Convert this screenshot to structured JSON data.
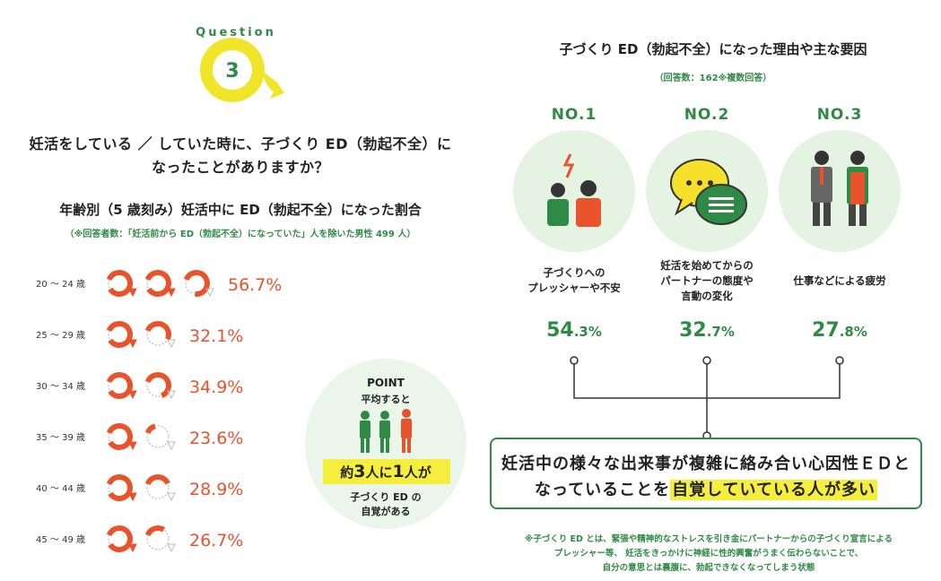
{
  "question": {
    "badge_word": "Question",
    "badge_number": "3",
    "title_line1": "妊活をしている ／ していた時に、子づくり ED（勃起不全）に",
    "title_line2": "なったことがありますか？"
  },
  "left_chart": {
    "title": "年齢別（5 歳刻み）妊活中に ED（勃起不全）になった割合",
    "note": "（※回答者数：「妊活前から ED（勃起不全）になっていた」人を除いた男性 499 人）"
  },
  "chart_data": {
    "type": "bar",
    "categories": [
      "20 〜 24 歳",
      "25 〜 29 歳",
      "30 〜 34 歳",
      "35 〜 39 歳",
      "40 〜 44 歳",
      "45 〜 49 歳"
    ],
    "values": [
      56.7,
      32.1,
      34.9,
      23.6,
      28.9,
      26.7
    ],
    "value_labels": [
      "56.7%",
      "32.1%",
      "34.9%",
      "23.6%",
      "28.9%",
      "26.7%"
    ],
    "unit": "%",
    "ylim": [
      0,
      100
    ],
    "mark": "pictogram",
    "icons_total": 5,
    "color": "#e8532b",
    "empty_color": "#bbbbbb"
  },
  "point": {
    "label": "POINT",
    "sub": "平均すると",
    "ratio_prefix": "約",
    "ratio_a": "3",
    "ratio_mid": "人に",
    "ratio_b": "1",
    "ratio_suffix": "人が",
    "desc_line1": "子づくり ED の",
    "desc_line2": "自覚がある"
  },
  "reasons": {
    "title": "子づくり ED（勃起不全）になった理由や主な要因",
    "note": "（回答数：162※複数回答）",
    "items": [
      {
        "rank": "NO.1",
        "label_line1": "子づくりへの",
        "label_line2": "プレッシャーや不安",
        "label_line3": "",
        "pct_int": "54",
        "pct_dec": ".3%",
        "icon": "stressed-couple-icon"
      },
      {
        "rank": "NO.2",
        "label_line1": "妊活を始めてからの",
        "label_line2": "パートナーの態度や",
        "label_line3": "言動の変化",
        "pct_int": "32",
        "pct_dec": ".7%",
        "icon": "speech-bubbles-icon"
      },
      {
        "rank": "NO.3",
        "label_line1": "仕事などによる疲労",
        "label_line2": "",
        "label_line3": "",
        "pct_int": "27",
        "pct_dec": ".8%",
        "icon": "tired-workers-icon"
      }
    ]
  },
  "conclusion": {
    "line1": "妊活中の様々な出来事が複雑に絡み合い心因性ＥＤと",
    "line2_prefix": "なっていることを",
    "line2_highlight": "自覚していている人が多い"
  },
  "footnote": {
    "line1": "※子づくり ED とは、緊張や精神的なストレスを引き金にパートナーからの子づくり宣言による",
    "line2": "プレッシャー等、 妊活をきっかけに神経に性的興奮がうまく伝わらないことで、",
    "line3": "自分の意思とは裏腹に、勃起できなくなってしまう状態"
  },
  "colors": {
    "accent_green": "#2f8a45",
    "accent_orange": "#e8532b",
    "highlight_yellow": "#f5ee3c",
    "light_green": "#e4f3e2"
  }
}
